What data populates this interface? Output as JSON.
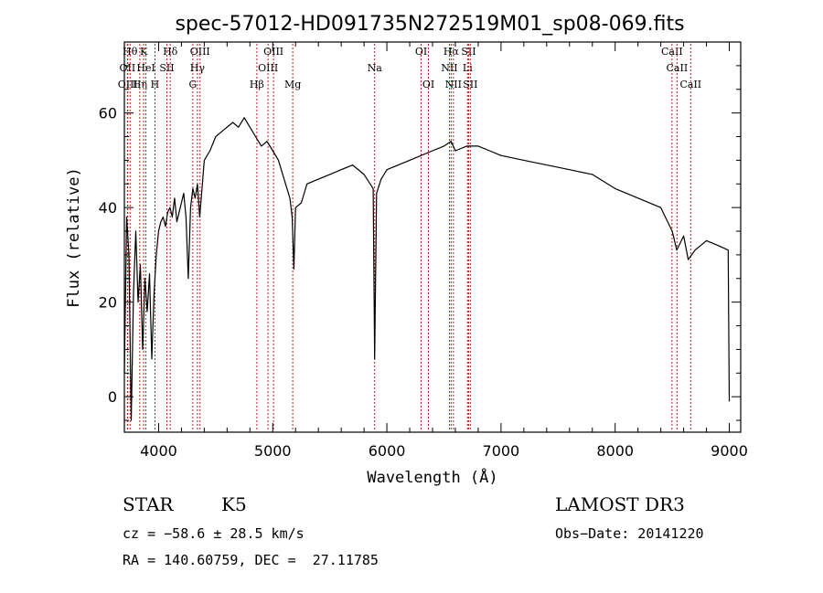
{
  "chart_data": {
    "type": "line",
    "title": "spec-57012-HD091735N272519M01_sp08-069.fits",
    "xlabel": "Wavelength (Å)",
    "ylabel": "Flux (relative)",
    "xlim": [
      3700,
      9100
    ],
    "ylim": [
      -7.5,
      75
    ],
    "xticks": [
      4000,
      5000,
      6000,
      7000,
      8000,
      9000
    ],
    "yticks": [
      0,
      20,
      40,
      60
    ],
    "grid": false,
    "line_color": "#000000",
    "marker_line_color": "#b22222",
    "series": [
      {
        "x": [
          3700,
          3720,
          3740,
          3760,
          3780,
          3800,
          3820,
          3840,
          3860,
          3880,
          3900,
          3920,
          3940,
          3960,
          3980,
          4000,
          4020,
          4040,
          4060,
          4080,
          4100,
          4120,
          4140,
          4160,
          4180,
          4200,
          4220,
          4240,
          4260,
          4280,
          4300,
          4320,
          4340,
          4360,
          4380,
          4400,
          4450,
          4500,
          4550,
          4600,
          4650,
          4700,
          4750,
          4800,
          4850,
          4900,
          4950,
          5000,
          5050,
          5100,
          5150,
          5170,
          5185,
          5200,
          5250,
          5300,
          5400,
          5500,
          5600,
          5700,
          5800,
          5880,
          5893,
          5910,
          5950,
          6000,
          6100,
          6200,
          6300,
          6400,
          6500,
          6563,
          6600,
          6700,
          6800,
          6900,
          7000,
          7200,
          7400,
          7600,
          7800,
          8000,
          8200,
          8400,
          8500,
          8540,
          8600,
          8640,
          8700,
          8800,
          8900,
          8990,
          9000
        ],
        "y": [
          5,
          38,
          30,
          -5,
          22,
          35,
          20,
          28,
          10,
          25,
          18,
          26,
          8,
          22,
          30,
          35,
          37,
          38,
          36,
          39,
          40,
          38,
          42,
          37,
          39,
          41,
          43,
          38,
          25,
          40,
          44,
          42,
          45,
          38,
          44,
          50,
          52,
          55,
          56,
          57,
          58,
          57,
          59,
          57,
          55,
          53,
          54,
          52,
          50,
          46,
          42,
          38,
          27,
          40,
          41,
          45,
          46,
          47,
          48,
          49,
          47,
          44,
          8,
          43,
          46,
          48,
          49,
          50,
          51,
          52,
          53,
          54,
          52,
          53,
          53,
          52,
          51,
          50,
          49,
          48,
          47,
          44,
          42,
          40,
          35,
          31,
          34,
          29,
          31,
          33,
          32,
          31,
          -1
        ]
      }
    ],
    "line_markers": [
      {
        "wavelength": 3727,
        "label": "OII",
        "tier": 2
      },
      {
        "wavelength": 3730,
        "label": "OIII",
        "tier": 3
      },
      {
        "wavelength": 3750,
        "label": "Hθ",
        "tier": 1
      },
      {
        "wavelength": 3835,
        "label": "Hη",
        "tier": 3
      },
      {
        "wavelength": 3869,
        "label": "K",
        "tier": 1
      },
      {
        "wavelength": 3889,
        "label": "HeI",
        "tier": 2
      },
      {
        "wavelength": 3968,
        "label": "H",
        "tier": 3
      },
      {
        "wavelength": 4072,
        "label": "SII",
        "tier": 2
      },
      {
        "wavelength": 4102,
        "label": "Hδ",
        "tier": 1
      },
      {
        "wavelength": 4300,
        "label": "G",
        "tier": 3
      },
      {
        "wavelength": 4340,
        "label": "Hγ",
        "tier": 2
      },
      {
        "wavelength": 4363,
        "label": "OIII",
        "tier": 1
      },
      {
        "wavelength": 4861,
        "label": "Hβ",
        "tier": 3
      },
      {
        "wavelength": 4959,
        "label": "OIII",
        "tier": 2
      },
      {
        "wavelength": 5007,
        "label": "OIII",
        "tier": 1
      },
      {
        "wavelength": 5175,
        "label": "Mg",
        "tier": 3
      },
      {
        "wavelength": 5893,
        "label": "Na",
        "tier": 2
      },
      {
        "wavelength": 6300,
        "label": "OI",
        "tier": 1
      },
      {
        "wavelength": 6364,
        "label": "OI",
        "tier": 3
      },
      {
        "wavelength": 6548,
        "label": "NII",
        "tier": 2
      },
      {
        "wavelength": 6563,
        "label": "Hα",
        "tier": 1
      },
      {
        "wavelength": 6583,
        "label": "NII",
        "tier": 3
      },
      {
        "wavelength": 6707,
        "label": "Li",
        "tier": 2
      },
      {
        "wavelength": 6716,
        "label": "SII",
        "tier": 1
      },
      {
        "wavelength": 6731,
        "label": "SII",
        "tier": 3
      },
      {
        "wavelength": 8498,
        "label": "CaII",
        "tier": 1
      },
      {
        "wavelength": 8542,
        "label": "CaII",
        "tier": 2
      },
      {
        "wavelength": 8662,
        "label": "CaII",
        "tier": 3
      }
    ]
  },
  "info": {
    "class_text": "STAR",
    "subclass_text": "K5",
    "survey_text": "LAMOST DR3",
    "cz_text": "cz = −58.6 ± 28.5 km/s",
    "obsdate_text": "Obs−Date: 20141220",
    "radec_text": "RA = 140.60759, DEC =  27.11785"
  }
}
